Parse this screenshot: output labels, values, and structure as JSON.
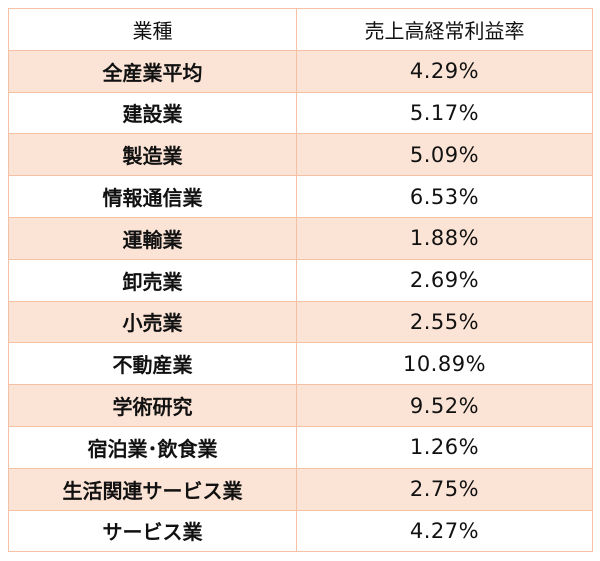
{
  "table": {
    "headers": [
      "業種",
      "売上高経常利益率"
    ],
    "rows": [
      {
        "industry": "全産業平均",
        "value": "4.29%"
      },
      {
        "industry": "建設業",
        "value": "5.17%"
      },
      {
        "industry": "製造業",
        "value": "5.09%"
      },
      {
        "industry": "情報通信業",
        "value": "6.53%"
      },
      {
        "industry": "運輸業",
        "value": "1.88%"
      },
      {
        "industry": "卸売業",
        "value": "2.69%"
      },
      {
        "industry": "小売業",
        "value": "2.55%"
      },
      {
        "industry": "不動産業",
        "value": "10.89%"
      },
      {
        "industry": "学術研究",
        "value": "9.52%"
      },
      {
        "industry": "宿泊業･飲食業",
        "value": "1.26%"
      },
      {
        "industry": "生活関連サービス業",
        "value": "2.75%"
      },
      {
        "industry": "サービス業",
        "value": "4.27%"
      }
    ]
  },
  "colors": {
    "border": "#f4c1a4",
    "stripe": "#fbe4d6",
    "background": "#ffffff",
    "text": "#111111"
  }
}
